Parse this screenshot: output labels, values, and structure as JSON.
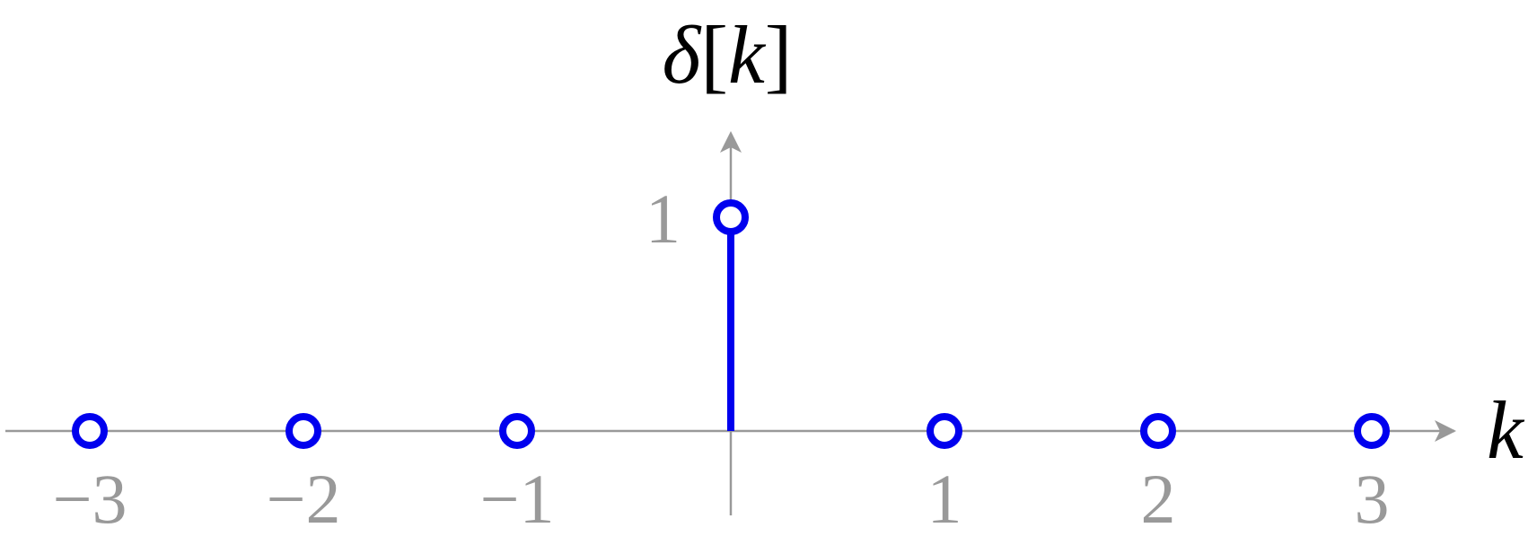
{
  "chart_data": {
    "type": "stem",
    "x": [
      -3,
      -2,
      -1,
      0,
      1,
      2,
      3
    ],
    "values": [
      0,
      0,
      0,
      1,
      0,
      0,
      0
    ],
    "xlabel": "k",
    "ylabel": {
      "symbol": "δ",
      "open_bracket": "[",
      "variable": "k",
      "close_bracket": "]"
    },
    "x_tick_labels": [
      "−3",
      "−2",
      "−1",
      "1",
      "2",
      "3"
    ],
    "x_tick_values": [
      -3,
      -2,
      -1,
      1,
      2,
      3
    ],
    "y_tick_labels": [
      "1"
    ],
    "y_tick_values": [
      1
    ],
    "xlim": [
      -3.4,
      3.4
    ],
    "ylim": [
      0,
      1.4
    ],
    "grid": false,
    "colors": {
      "stem": "#0000ee",
      "axis": "#999999",
      "text": "#000000"
    }
  }
}
